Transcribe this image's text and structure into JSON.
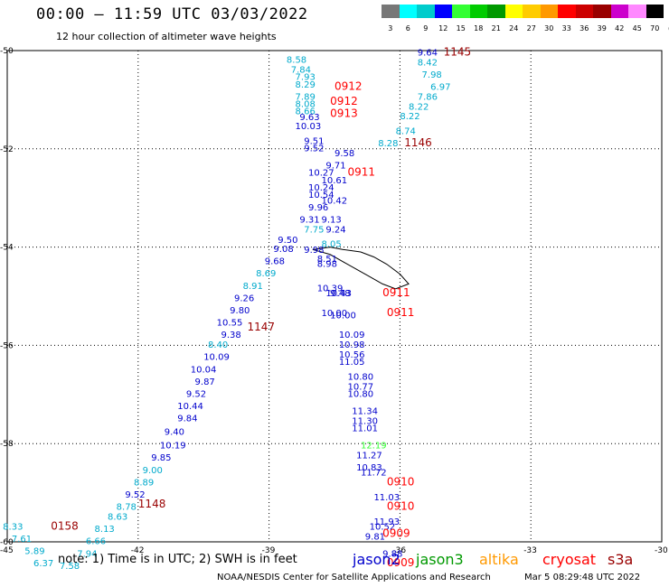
{
  "title": "00:00 – 11:59 UTC 03/03/2022",
  "subtitle": "12 hour collection of altimeter wave heights",
  "note": "note: 1) Time is in UTC; 2) SWH is in feet",
  "satellites": [
    "jason2",
    "jason3",
    "altika",
    "cryosat",
    "s3a"
  ],
  "credit": "NOAA/NESDIS Center for Satellite Applications and Research",
  "timestamp": "Mar  5 08:29:48 UTC 2022",
  "scale": {
    "unit": "(ft)",
    "ticks": [
      "3",
      "6",
      "9",
      "12",
      "15",
      "18",
      "21",
      "24",
      "27",
      "30",
      "33",
      "36",
      "39",
      "42",
      "45",
      "70"
    ],
    "colors": [
      "#777777",
      "#00ffff",
      "#00cccc",
      "#0000ff",
      "#33ff33",
      "#00cc00",
      "#009900",
      "#ffff00",
      "#ffcc00",
      "#ff9900",
      "#ff0000",
      "#cc0000",
      "#990000",
      "#cc00cc",
      "#ff88ff",
      "#000000"
    ]
  },
  "axes": {
    "lon_labels": [
      "-45",
      "-42",
      "-39",
      "-36",
      "-33",
      "-30"
    ],
    "lon_values": [
      -45,
      -42,
      -39,
      -36,
      -33,
      -30
    ],
    "lat_labels": [
      "-50",
      "-52",
      "-54",
      "-56",
      "-58",
      "-60"
    ],
    "lat_values": [
      -50,
      -52,
      -54,
      -56,
      -58,
      -60
    ]
  },
  "chart_data": {
    "type": "scatter",
    "x_range": [
      -45,
      -30
    ],
    "y_range": [
      -60,
      -50
    ],
    "grid": true,
    "wave_height_labels": [
      {
        "lon": -35.6,
        "lat": -50.1,
        "text": "9.64",
        "color": "#0000cc"
      },
      {
        "lon": -35.6,
        "lat": -50.3,
        "text": "8.42",
        "color": "#00aacc"
      },
      {
        "lon": -35.5,
        "lat": -50.55,
        "text": "7.98",
        "color": "#00aacc"
      },
      {
        "lon": -35.3,
        "lat": -50.8,
        "text": "6.97",
        "color": "#00aacc"
      },
      {
        "lon": -35.6,
        "lat": -51.0,
        "text": "7.86",
        "color": "#00aacc"
      },
      {
        "lon": -35.8,
        "lat": -51.2,
        "text": "8.22",
        "color": "#00aacc"
      },
      {
        "lon": -36.0,
        "lat": -51.4,
        "text": "8.22",
        "color": "#00aacc"
      },
      {
        "lon": -36.1,
        "lat": -51.7,
        "text": "8.74",
        "color": "#00aacc"
      },
      {
        "lon": -36.5,
        "lat": -51.95,
        "text": "8.28",
        "color": "#00aacc"
      },
      {
        "lon": -38.6,
        "lat": -50.25,
        "text": "8.58",
        "color": "#00aacc"
      },
      {
        "lon": -38.5,
        "lat": -50.45,
        "text": "7.84",
        "color": "#00aacc"
      },
      {
        "lon": -38.4,
        "lat": -50.6,
        "text": "7.93",
        "color": "#00aacc"
      },
      {
        "lon": -38.4,
        "lat": -50.75,
        "text": "8.29",
        "color": "#00aacc"
      },
      {
        "lon": -38.4,
        "lat": -51.0,
        "text": "7.89",
        "color": "#00aacc"
      },
      {
        "lon": -38.4,
        "lat": -51.15,
        "text": "8.08",
        "color": "#00aacc"
      },
      {
        "lon": -38.4,
        "lat": -51.3,
        "text": "8.66",
        "color": "#00aacc"
      },
      {
        "lon": -38.3,
        "lat": -51.42,
        "text": "9.63",
        "color": "#0000cc"
      },
      {
        "lon": -38.4,
        "lat": -51.6,
        "text": "10.03",
        "color": "#0000cc"
      },
      {
        "lon": -38.2,
        "lat": -51.9,
        "text": "9.51",
        "color": "#0000cc"
      },
      {
        "lon": -38.2,
        "lat": -52.05,
        "text": "9.52",
        "color": "#0000cc"
      },
      {
        "lon": -37.5,
        "lat": -52.15,
        "text": "9.58",
        "color": "#0000cc"
      },
      {
        "lon": -37.7,
        "lat": -52.4,
        "text": "9.71",
        "color": "#0000cc"
      },
      {
        "lon": -38.1,
        "lat": -52.55,
        "text": "10.27",
        "color": "#0000cc"
      },
      {
        "lon": -37.8,
        "lat": -52.7,
        "text": "10.61",
        "color": "#0000cc"
      },
      {
        "lon": -38.1,
        "lat": -52.85,
        "text": "10.24",
        "color": "#0000cc"
      },
      {
        "lon": -38.1,
        "lat": -53.0,
        "text": "10.54",
        "color": "#0000cc"
      },
      {
        "lon": -37.8,
        "lat": -53.12,
        "text": "10.42",
        "color": "#0000cc"
      },
      {
        "lon": -38.1,
        "lat": -53.25,
        "text": "9.96",
        "color": "#0000cc"
      },
      {
        "lon": -38.3,
        "lat": -53.5,
        "text": "9.31",
        "color": "#0000cc"
      },
      {
        "lon": -37.8,
        "lat": -53.5,
        "text": "9.13",
        "color": "#0000cc"
      },
      {
        "lon": -38.2,
        "lat": -53.7,
        "text": "7.75",
        "color": "#00aacc"
      },
      {
        "lon": -37.7,
        "lat": -53.7,
        "text": "9.24",
        "color": "#0000cc"
      },
      {
        "lon": -38.8,
        "lat": -53.92,
        "text": "9.50",
        "color": "#0000cc"
      },
      {
        "lon": -37.8,
        "lat": -54.0,
        "text": "8.05",
        "color": "#00aacc"
      },
      {
        "lon": -38.9,
        "lat": -54.1,
        "text": "9.08",
        "color": "#0000cc"
      },
      {
        "lon": -38.2,
        "lat": -54.12,
        "text": "9.98",
        "color": "#0000cc"
      },
      {
        "lon": -39.1,
        "lat": -54.35,
        "text": "9.68",
        "color": "#0000cc"
      },
      {
        "lon": -37.9,
        "lat": -54.3,
        "text": "8.51",
        "color": "#0000cc"
      },
      {
        "lon": -37.9,
        "lat": -54.4,
        "text": "8.98",
        "color": "#0000cc"
      },
      {
        "lon": -39.3,
        "lat": -54.6,
        "text": "8.69",
        "color": "#00aacc"
      },
      {
        "lon": -39.6,
        "lat": -54.85,
        "text": "8.91",
        "color": "#00aacc"
      },
      {
        "lon": -37.9,
        "lat": -54.9,
        "text": "10.39",
        "color": "#0000cc"
      },
      {
        "lon": -37.6,
        "lat": -55.0,
        "text": "9.48",
        "color": "#0000cc"
      },
      {
        "lon": -37.7,
        "lat": -55.0,
        "text": "10.43",
        "color": "#0000cc"
      },
      {
        "lon": -39.8,
        "lat": -55.1,
        "text": "9.26",
        "color": "#0000cc"
      },
      {
        "lon": -39.9,
        "lat": -55.35,
        "text": "9.80",
        "color": "#0000cc"
      },
      {
        "lon": -37.8,
        "lat": -55.4,
        "text": "10.00",
        "color": "#0000cc"
      },
      {
        "lon": -37.6,
        "lat": -55.45,
        "text": "10.00",
        "color": "#0000cc"
      },
      {
        "lon": -40.2,
        "lat": -55.6,
        "text": "10.55",
        "color": "#0000cc"
      },
      {
        "lon": -40.1,
        "lat": -55.85,
        "text": "9.38",
        "color": "#0000cc"
      },
      {
        "lon": -37.4,
        "lat": -55.85,
        "text": "10.09",
        "color": "#0000cc"
      },
      {
        "lon": -40.4,
        "lat": -56.05,
        "text": "8.40",
        "color": "#00aacc"
      },
      {
        "lon": -37.4,
        "lat": -56.05,
        "text": "10.98",
        "color": "#0000cc"
      },
      {
        "lon": -37.4,
        "lat": -56.25,
        "text": "10.56",
        "color": "#0000cc"
      },
      {
        "lon": -40.5,
        "lat": -56.3,
        "text": "10.09",
        "color": "#0000cc"
      },
      {
        "lon": -37.4,
        "lat": -56.4,
        "text": "11.05",
        "color": "#0000cc"
      },
      {
        "lon": -40.8,
        "lat": -56.55,
        "text": "10.04",
        "color": "#0000cc"
      },
      {
        "lon": -37.2,
        "lat": -56.7,
        "text": "10.80",
        "color": "#0000cc"
      },
      {
        "lon": -40.7,
        "lat": -56.8,
        "text": "9.87",
        "color": "#0000cc"
      },
      {
        "lon": -37.2,
        "lat": -56.9,
        "text": "10.77",
        "color": "#0000cc"
      },
      {
        "lon": -37.2,
        "lat": -57.05,
        "text": "10.80",
        "color": "#0000cc"
      },
      {
        "lon": -40.9,
        "lat": -57.05,
        "text": "9.52",
        "color": "#0000cc"
      },
      {
        "lon": -41.1,
        "lat": -57.3,
        "text": "10.44",
        "color": "#0000cc"
      },
      {
        "lon": -37.1,
        "lat": -57.4,
        "text": "11.34",
        "color": "#0000cc"
      },
      {
        "lon": -41.1,
        "lat": -57.55,
        "text": "9.84",
        "color": "#0000cc"
      },
      {
        "lon": -37.1,
        "lat": -57.6,
        "text": "11.30",
        "color": "#0000cc"
      },
      {
        "lon": -37.1,
        "lat": -57.75,
        "text": "11.01",
        "color": "#0000cc"
      },
      {
        "lon": -41.4,
        "lat": -57.82,
        "text": "9.40",
        "color": "#0000cc"
      },
      {
        "lon": -41.5,
        "lat": -58.1,
        "text": "10.19",
        "color": "#0000cc"
      },
      {
        "lon": -36.9,
        "lat": -58.1,
        "text": "12.19",
        "color": "#33ff33"
      },
      {
        "lon": -41.7,
        "lat": -58.35,
        "text": "9.85",
        "color": "#0000cc"
      },
      {
        "lon": -37.0,
        "lat": -58.3,
        "text": "11.27",
        "color": "#0000cc"
      },
      {
        "lon": -41.9,
        "lat": -58.6,
        "text": "9.00",
        "color": "#00aacc"
      },
      {
        "lon": -37.0,
        "lat": -58.55,
        "text": "10.83",
        "color": "#0000cc"
      },
      {
        "lon": -36.9,
        "lat": -58.65,
        "text": "11.72",
        "color": "#0000cc"
      },
      {
        "lon": -42.1,
        "lat": -58.85,
        "text": "8.89",
        "color": "#00aacc"
      },
      {
        "lon": -42.3,
        "lat": -59.1,
        "text": "9.52",
        "color": "#0000cc"
      },
      {
        "lon": -36.6,
        "lat": -59.15,
        "text": "11.03",
        "color": "#0000cc"
      },
      {
        "lon": -42.5,
        "lat": -59.35,
        "text": "8.78",
        "color": "#00aacc"
      },
      {
        "lon": -42.7,
        "lat": -59.55,
        "text": "8.63",
        "color": "#00aacc"
      },
      {
        "lon": -36.6,
        "lat": -59.65,
        "text": "11.93",
        "color": "#0000cc"
      },
      {
        "lon": -36.7,
        "lat": -59.75,
        "text": "10.52",
        "color": "#0000cc"
      },
      {
        "lon": -43.0,
        "lat": -59.8,
        "text": "8.13",
        "color": "#00aacc"
      },
      {
        "lon": -36.8,
        "lat": -59.95,
        "text": "9.81",
        "color": "#0000cc"
      },
      {
        "lon": -43.2,
        "lat": -60.05,
        "text": "6.66",
        "color": "#00aacc"
      },
      {
        "lon": -43.4,
        "lat": -60.3,
        "text": "7.94",
        "color": "#00aacc"
      },
      {
        "lon": -36.4,
        "lat": -60.3,
        "text": "9.88",
        "color": "#0000cc"
      },
      {
        "lon": -43.8,
        "lat": -60.55,
        "text": "7.58",
        "color": "#00aacc"
      },
      {
        "lon": -45.1,
        "lat": -59.75,
        "text": "8.33",
        "color": "#00aacc"
      },
      {
        "lon": -44.9,
        "lat": -60.0,
        "text": "7.61",
        "color": "#00aacc"
      },
      {
        "lon": -44.6,
        "lat": -60.25,
        "text": "5.89",
        "color": "#00aacc"
      },
      {
        "lon": -44.4,
        "lat": -60.5,
        "text": "6.37",
        "color": "#00aacc"
      }
    ],
    "time_labels": [
      {
        "lon": -35.0,
        "lat": -50.1,
        "text": "1145",
        "color": "#990000"
      },
      {
        "lon": -37.5,
        "lat": -50.8,
        "text": "0912",
        "color": "#ff0000"
      },
      {
        "lon": -37.6,
        "lat": -51.1,
        "text": "0912",
        "color": "#ff0000"
      },
      {
        "lon": -37.6,
        "lat": -51.35,
        "text": "0913",
        "color": "#ff0000"
      },
      {
        "lon": -35.9,
        "lat": -51.95,
        "text": "1146",
        "color": "#990000"
      },
      {
        "lon": -37.2,
        "lat": -52.55,
        "text": "0911",
        "color": "#ff0000"
      },
      {
        "lon": -36.4,
        "lat": -55.0,
        "text": "0911",
        "color": "#ff0000"
      },
      {
        "lon": -36.3,
        "lat": -55.4,
        "text": "0911",
        "color": "#ff0000"
      },
      {
        "lon": -39.5,
        "lat": -55.7,
        "text": "1147",
        "color": "#990000"
      },
      {
        "lon": -36.3,
        "lat": -58.85,
        "text": "0910",
        "color": "#ff0000"
      },
      {
        "lon": -36.3,
        "lat": -59.35,
        "text": "0910",
        "color": "#ff0000"
      },
      {
        "lon": -42.0,
        "lat": -59.3,
        "text": "1148",
        "color": "#990000"
      },
      {
        "lon": -36.4,
        "lat": -59.9,
        "text": "0909",
        "color": "#ff0000"
      },
      {
        "lon": -36.3,
        "lat": -60.5,
        "text": "0909",
        "color": "#ff0000"
      },
      {
        "lon": -44.0,
        "lat": -59.75,
        "text": "0158",
        "color": "#990000"
      }
    ]
  }
}
